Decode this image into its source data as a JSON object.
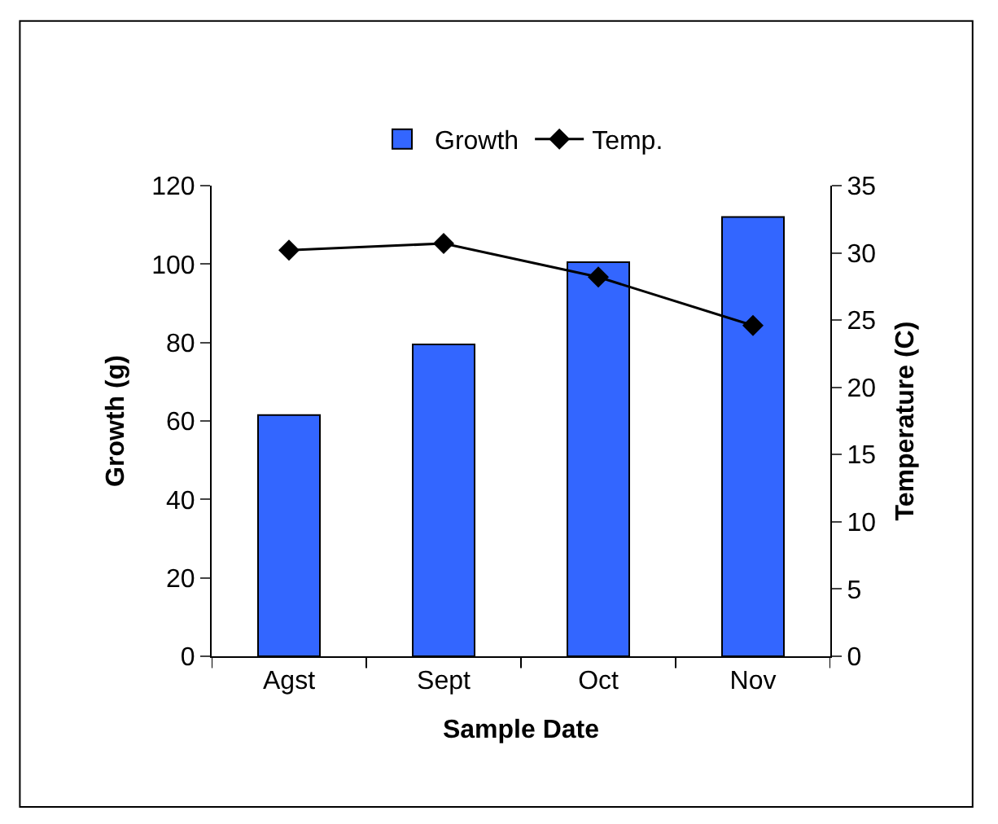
{
  "chart_data": {
    "type": "bar",
    "xlabel": "Sample Date",
    "ylabel": "Growth (g)",
    "y2label": "Temperature (C)",
    "categories": [
      "Agst",
      "Sept",
      "Oct",
      "Nov"
    ],
    "series": [
      {
        "name": "Growth",
        "color": "#3366ff",
        "values": [
          61.5,
          79.5,
          100.5,
          112
        ]
      },
      {
        "name": "Temp.",
        "type": "line",
        "axis": "y2",
        "color": "#000000",
        "marker": "diamond",
        "values": [
          30.2,
          30.7,
          28.2,
          24.6
        ]
      }
    ],
    "ylim": [
      0,
      120
    ],
    "yticks": [
      0,
      20,
      40,
      60,
      80,
      100,
      120
    ],
    "y2lim": [
      0,
      35
    ],
    "y2ticks": [
      0,
      5,
      10,
      15,
      20,
      25,
      30,
      35
    ],
    "legend": "top"
  }
}
